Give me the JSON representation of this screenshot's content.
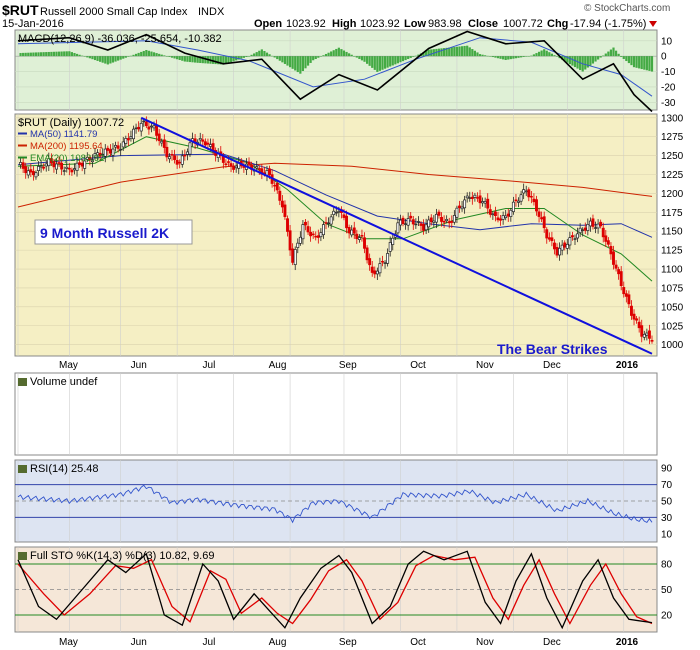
{
  "header": {
    "symbol": "$RUT",
    "name": "Russell 2000 Small Cap Index",
    "exchange": "INDX",
    "date": "15-Jan-2016",
    "open_label": "Open",
    "open": "1023.92",
    "high_label": "High",
    "high": "1023.92",
    "low_label": "Low",
    "low": "983.98",
    "close_label": "Close",
    "close": "1007.72",
    "chg_label": "Chg",
    "chg": "-17.94 (-1.75%)",
    "watermark": "© StockCharts.com"
  },
  "colors": {
    "up": "#222222",
    "down": "#dd0000",
    "ma50": "#2233aa",
    "ma200": "#cc2200",
    "ema20": "#228822",
    "trend": "#1010dd",
    "macd_hist": "#44aa44",
    "price_bg": "#f5efc4",
    "macd_bg": "#dff0d6",
    "rsi_bg": "#dde4f2",
    "sto_bg": "#f5e7d8"
  },
  "chart_data": [
    {
      "type": "candlestick",
      "title": "$RUT (Daily) 1007.72",
      "legend": [
        {
          "label": "MA(50) 1141.79",
          "color": "#2233aa"
        },
        {
          "label": "MA(200) 1195.64",
          "color": "#cc2200"
        },
        {
          "label": "EMA(20) 1083.92",
          "color": "#228822"
        }
      ],
      "x_tick_labels": [
        "May",
        "Jun",
        "Jul",
        "Aug",
        "Sep",
        "Oct",
        "Nov",
        "Dec",
        "2016"
      ],
      "ylim": [
        985,
        1305
      ],
      "y_ticks": [
        1000,
        1025,
        1050,
        1075,
        1100,
        1125,
        1150,
        1175,
        1200,
        1225,
        1250,
        1275,
        1300
      ],
      "price_path": [
        {
          "t": 0,
          "v": 1240
        },
        {
          "t": 5,
          "v": 1225
        },
        {
          "t": 12,
          "v": 1242
        },
        {
          "t": 20,
          "v": 1230
        },
        {
          "t": 30,
          "v": 1250
        },
        {
          "t": 40,
          "v": 1262
        },
        {
          "t": 48,
          "v": 1293
        },
        {
          "t": 53,
          "v": 1286
        },
        {
          "t": 58,
          "v": 1252
        },
        {
          "t": 63,
          "v": 1240
        },
        {
          "t": 68,
          "v": 1270
        },
        {
          "t": 73,
          "v": 1268
        },
        {
          "t": 78,
          "v": 1250
        },
        {
          "t": 83,
          "v": 1235
        },
        {
          "t": 88,
          "v": 1238
        },
        {
          "t": 93,
          "v": 1232
        },
        {
          "t": 98,
          "v": 1225
        },
        {
          "t": 103,
          "v": 1185
        },
        {
          "t": 107,
          "v": 1110
        },
        {
          "t": 111,
          "v": 1158
        },
        {
          "t": 116,
          "v": 1140
        },
        {
          "t": 121,
          "v": 1165
        },
        {
          "t": 125,
          "v": 1180
        },
        {
          "t": 129,
          "v": 1150
        },
        {
          "t": 134,
          "v": 1140
        },
        {
          "t": 138,
          "v": 1092
        },
        {
          "t": 143,
          "v": 1112
        },
        {
          "t": 148,
          "v": 1160
        },
        {
          "t": 153,
          "v": 1165
        },
        {
          "t": 158,
          "v": 1155
        },
        {
          "t": 163,
          "v": 1170
        },
        {
          "t": 168,
          "v": 1160
        },
        {
          "t": 172,
          "v": 1182
        },
        {
          "t": 176,
          "v": 1197
        },
        {
          "t": 181,
          "v": 1190
        },
        {
          "t": 186,
          "v": 1167
        },
        {
          "t": 190,
          "v": 1168
        },
        {
          "t": 194,
          "v": 1190
        },
        {
          "t": 198,
          "v": 1205
        },
        {
          "t": 202,
          "v": 1180
        },
        {
          "t": 206,
          "v": 1145
        },
        {
          "t": 210,
          "v": 1122
        },
        {
          "t": 214,
          "v": 1135
        },
        {
          "t": 219,
          "v": 1150
        },
        {
          "t": 223,
          "v": 1160
        },
        {
          "t": 227,
          "v": 1155
        },
        {
          "t": 231,
          "v": 1120
        },
        {
          "t": 235,
          "v": 1080
        },
        {
          "t": 239,
          "v": 1042
        },
        {
          "t": 243,
          "v": 1015
        },
        {
          "t": 247,
          "v": 1008
        }
      ],
      "ma50_path": [
        {
          "t": 0,
          "v": 1238
        },
        {
          "t": 40,
          "v": 1250
        },
        {
          "t": 80,
          "v": 1252
        },
        {
          "t": 100,
          "v": 1230
        },
        {
          "t": 120,
          "v": 1198
        },
        {
          "t": 140,
          "v": 1170
        },
        {
          "t": 160,
          "v": 1160
        },
        {
          "t": 180,
          "v": 1152
        },
        {
          "t": 200,
          "v": 1160
        },
        {
          "t": 220,
          "v": 1158
        },
        {
          "t": 235,
          "v": 1160
        },
        {
          "t": 247,
          "v": 1142
        }
      ],
      "ma200_path": [
        {
          "t": 0,
          "v": 1182
        },
        {
          "t": 40,
          "v": 1215
        },
        {
          "t": 80,
          "v": 1235
        },
        {
          "t": 100,
          "v": 1240
        },
        {
          "t": 130,
          "v": 1236
        },
        {
          "t": 160,
          "v": 1225
        },
        {
          "t": 190,
          "v": 1217
        },
        {
          "t": 220,
          "v": 1208
        },
        {
          "t": 247,
          "v": 1196
        }
      ],
      "ema20_path": [
        {
          "t": 0,
          "v": 1236
        },
        {
          "t": 30,
          "v": 1240
        },
        {
          "t": 50,
          "v": 1275
        },
        {
          "t": 70,
          "v": 1260
        },
        {
          "t": 90,
          "v": 1240
        },
        {
          "t": 105,
          "v": 1205
        },
        {
          "t": 120,
          "v": 1160
        },
        {
          "t": 135,
          "v": 1140
        },
        {
          "t": 150,
          "v": 1140
        },
        {
          "t": 170,
          "v": 1165
        },
        {
          "t": 190,
          "v": 1180
        },
        {
          "t": 205,
          "v": 1180
        },
        {
          "t": 220,
          "v": 1145
        },
        {
          "t": 235,
          "v": 1120
        },
        {
          "t": 247,
          "v": 1084
        }
      ],
      "trendline": {
        "t1": 48,
        "v1": 1300,
        "t2": 247,
        "v2": 988
      },
      "annotations": [
        "9 Month Russell 2K",
        "The Bear Strikes"
      ]
    },
    {
      "type": "line",
      "title": "MACD(12,26,9) -36.036, -25.654, -10.382",
      "ylim": [
        -35,
        17
      ],
      "y_ticks": [
        -30,
        -20,
        -10,
        0,
        10
      ],
      "macd_path": [
        {
          "t": 0,
          "v": 10
        },
        {
          "t": 20,
          "v": 12
        },
        {
          "t": 35,
          "v": 4
        },
        {
          "t": 50,
          "v": 14
        },
        {
          "t": 65,
          "v": 2
        },
        {
          "t": 80,
          "v": -5
        },
        {
          "t": 95,
          "v": -2
        },
        {
          "t": 110,
          "v": -28
        },
        {
          "t": 125,
          "v": -12
        },
        {
          "t": 140,
          "v": -22
        },
        {
          "t": 160,
          "v": 5
        },
        {
          "t": 175,
          "v": 16
        },
        {
          "t": 190,
          "v": 8
        },
        {
          "t": 205,
          "v": 10
        },
        {
          "t": 220,
          "v": -15
        },
        {
          "t": 232,
          "v": -5
        },
        {
          "t": 240,
          "v": -25
        },
        {
          "t": 247,
          "v": -36
        }
      ],
      "signal_path": [
        {
          "t": 0,
          "v": 8
        },
        {
          "t": 25,
          "v": 9
        },
        {
          "t": 50,
          "v": 10
        },
        {
          "t": 70,
          "v": 4
        },
        {
          "t": 90,
          "v": -3
        },
        {
          "t": 115,
          "v": -20
        },
        {
          "t": 135,
          "v": -15
        },
        {
          "t": 155,
          "v": -2
        },
        {
          "t": 180,
          "v": 12
        },
        {
          "t": 200,
          "v": 9
        },
        {
          "t": 220,
          "v": -5
        },
        {
          "t": 235,
          "v": -12
        },
        {
          "t": 247,
          "v": -26
        }
      ]
    },
    {
      "type": "bar",
      "title": "Volume undef"
    },
    {
      "type": "line",
      "title": "RSI(14) 25.48",
      "ylim": [
        0,
        100
      ],
      "y_ticks": [
        10,
        30,
        50,
        70,
        90
      ],
      "reference_lines": [
        30,
        70
      ],
      "rsi_path": [
        {
          "t": 0,
          "v": 55
        },
        {
          "t": 20,
          "v": 50
        },
        {
          "t": 40,
          "v": 58
        },
        {
          "t": 50,
          "v": 68
        },
        {
          "t": 60,
          "v": 48
        },
        {
          "t": 70,
          "v": 52
        },
        {
          "t": 85,
          "v": 45
        },
        {
          "t": 100,
          "v": 40
        },
        {
          "t": 107,
          "v": 27
        },
        {
          "t": 115,
          "v": 48
        },
        {
          "t": 125,
          "v": 50
        },
        {
          "t": 138,
          "v": 30
        },
        {
          "t": 150,
          "v": 58
        },
        {
          "t": 165,
          "v": 56
        },
        {
          "t": 176,
          "v": 62
        },
        {
          "t": 186,
          "v": 48
        },
        {
          "t": 198,
          "v": 58
        },
        {
          "t": 210,
          "v": 38
        },
        {
          "t": 222,
          "v": 50
        },
        {
          "t": 232,
          "v": 35
        },
        {
          "t": 240,
          "v": 28
        },
        {
          "t": 247,
          "v": 25
        }
      ]
    },
    {
      "type": "line",
      "title": "Full STO %K(14,3) %D(3) 10.82, 9.69",
      "ylim": [
        0,
        100
      ],
      "y_ticks": [
        20,
        50,
        80
      ],
      "reference_lines": [
        20,
        80
      ],
      "k_path": [
        {
          "t": 0,
          "v": 85
        },
        {
          "t": 8,
          "v": 30
        },
        {
          "t": 15,
          "v": 15
        },
        {
          "t": 25,
          "v": 50
        },
        {
          "t": 35,
          "v": 85
        },
        {
          "t": 42,
          "v": 70
        },
        {
          "t": 50,
          "v": 92
        },
        {
          "t": 57,
          "v": 20
        },
        {
          "t": 64,
          "v": 8
        },
        {
          "t": 72,
          "v": 80
        },
        {
          "t": 78,
          "v": 60
        },
        {
          "t": 84,
          "v": 15
        },
        {
          "t": 92,
          "v": 45
        },
        {
          "t": 98,
          "v": 25
        },
        {
          "t": 104,
          "v": 5
        },
        {
          "t": 110,
          "v": 40
        },
        {
          "t": 118,
          "v": 75
        },
        {
          "t": 125,
          "v": 90
        },
        {
          "t": 130,
          "v": 70
        },
        {
          "t": 138,
          "v": 10
        },
        {
          "t": 145,
          "v": 30
        },
        {
          "t": 152,
          "v": 80
        },
        {
          "t": 158,
          "v": 95
        },
        {
          "t": 166,
          "v": 85
        },
        {
          "t": 175,
          "v": 95
        },
        {
          "t": 182,
          "v": 35
        },
        {
          "t": 188,
          "v": 10
        },
        {
          "t": 194,
          "v": 60
        },
        {
          "t": 200,
          "v": 92
        },
        {
          "t": 206,
          "v": 40
        },
        {
          "t": 212,
          "v": 5
        },
        {
          "t": 220,
          "v": 60
        },
        {
          "t": 226,
          "v": 85
        },
        {
          "t": 232,
          "v": 40
        },
        {
          "t": 238,
          "v": 15
        },
        {
          "t": 247,
          "v": 11
        }
      ],
      "d_path": [
        {
          "t": 0,
          "v": 80
        },
        {
          "t": 10,
          "v": 45
        },
        {
          "t": 18,
          "v": 20
        },
        {
          "t": 28,
          "v": 45
        },
        {
          "t": 38,
          "v": 78
        },
        {
          "t": 45,
          "v": 75
        },
        {
          "t": 52,
          "v": 85
        },
        {
          "t": 60,
          "v": 30
        },
        {
          "t": 67,
          "v": 12
        },
        {
          "t": 75,
          "v": 72
        },
        {
          "t": 81,
          "v": 62
        },
        {
          "t": 87,
          "v": 22
        },
        {
          "t": 95,
          "v": 40
        },
        {
          "t": 101,
          "v": 22
        },
        {
          "t": 107,
          "v": 10
        },
        {
          "t": 114,
          "v": 38
        },
        {
          "t": 121,
          "v": 72
        },
        {
          "t": 128,
          "v": 85
        },
        {
          "t": 134,
          "v": 60
        },
        {
          "t": 141,
          "v": 15
        },
        {
          "t": 148,
          "v": 35
        },
        {
          "t": 155,
          "v": 78
        },
        {
          "t": 162,
          "v": 90
        },
        {
          "t": 170,
          "v": 85
        },
        {
          "t": 178,
          "v": 88
        },
        {
          "t": 185,
          "v": 40
        },
        {
          "t": 191,
          "v": 15
        },
        {
          "t": 197,
          "v": 55
        },
        {
          "t": 203,
          "v": 85
        },
        {
          "t": 209,
          "v": 45
        },
        {
          "t": 215,
          "v": 10
        },
        {
          "t": 223,
          "v": 55
        },
        {
          "t": 229,
          "v": 80
        },
        {
          "t": 235,
          "v": 45
        },
        {
          "t": 241,
          "v": 18
        },
        {
          "t": 247,
          "v": 10
        }
      ]
    }
  ]
}
